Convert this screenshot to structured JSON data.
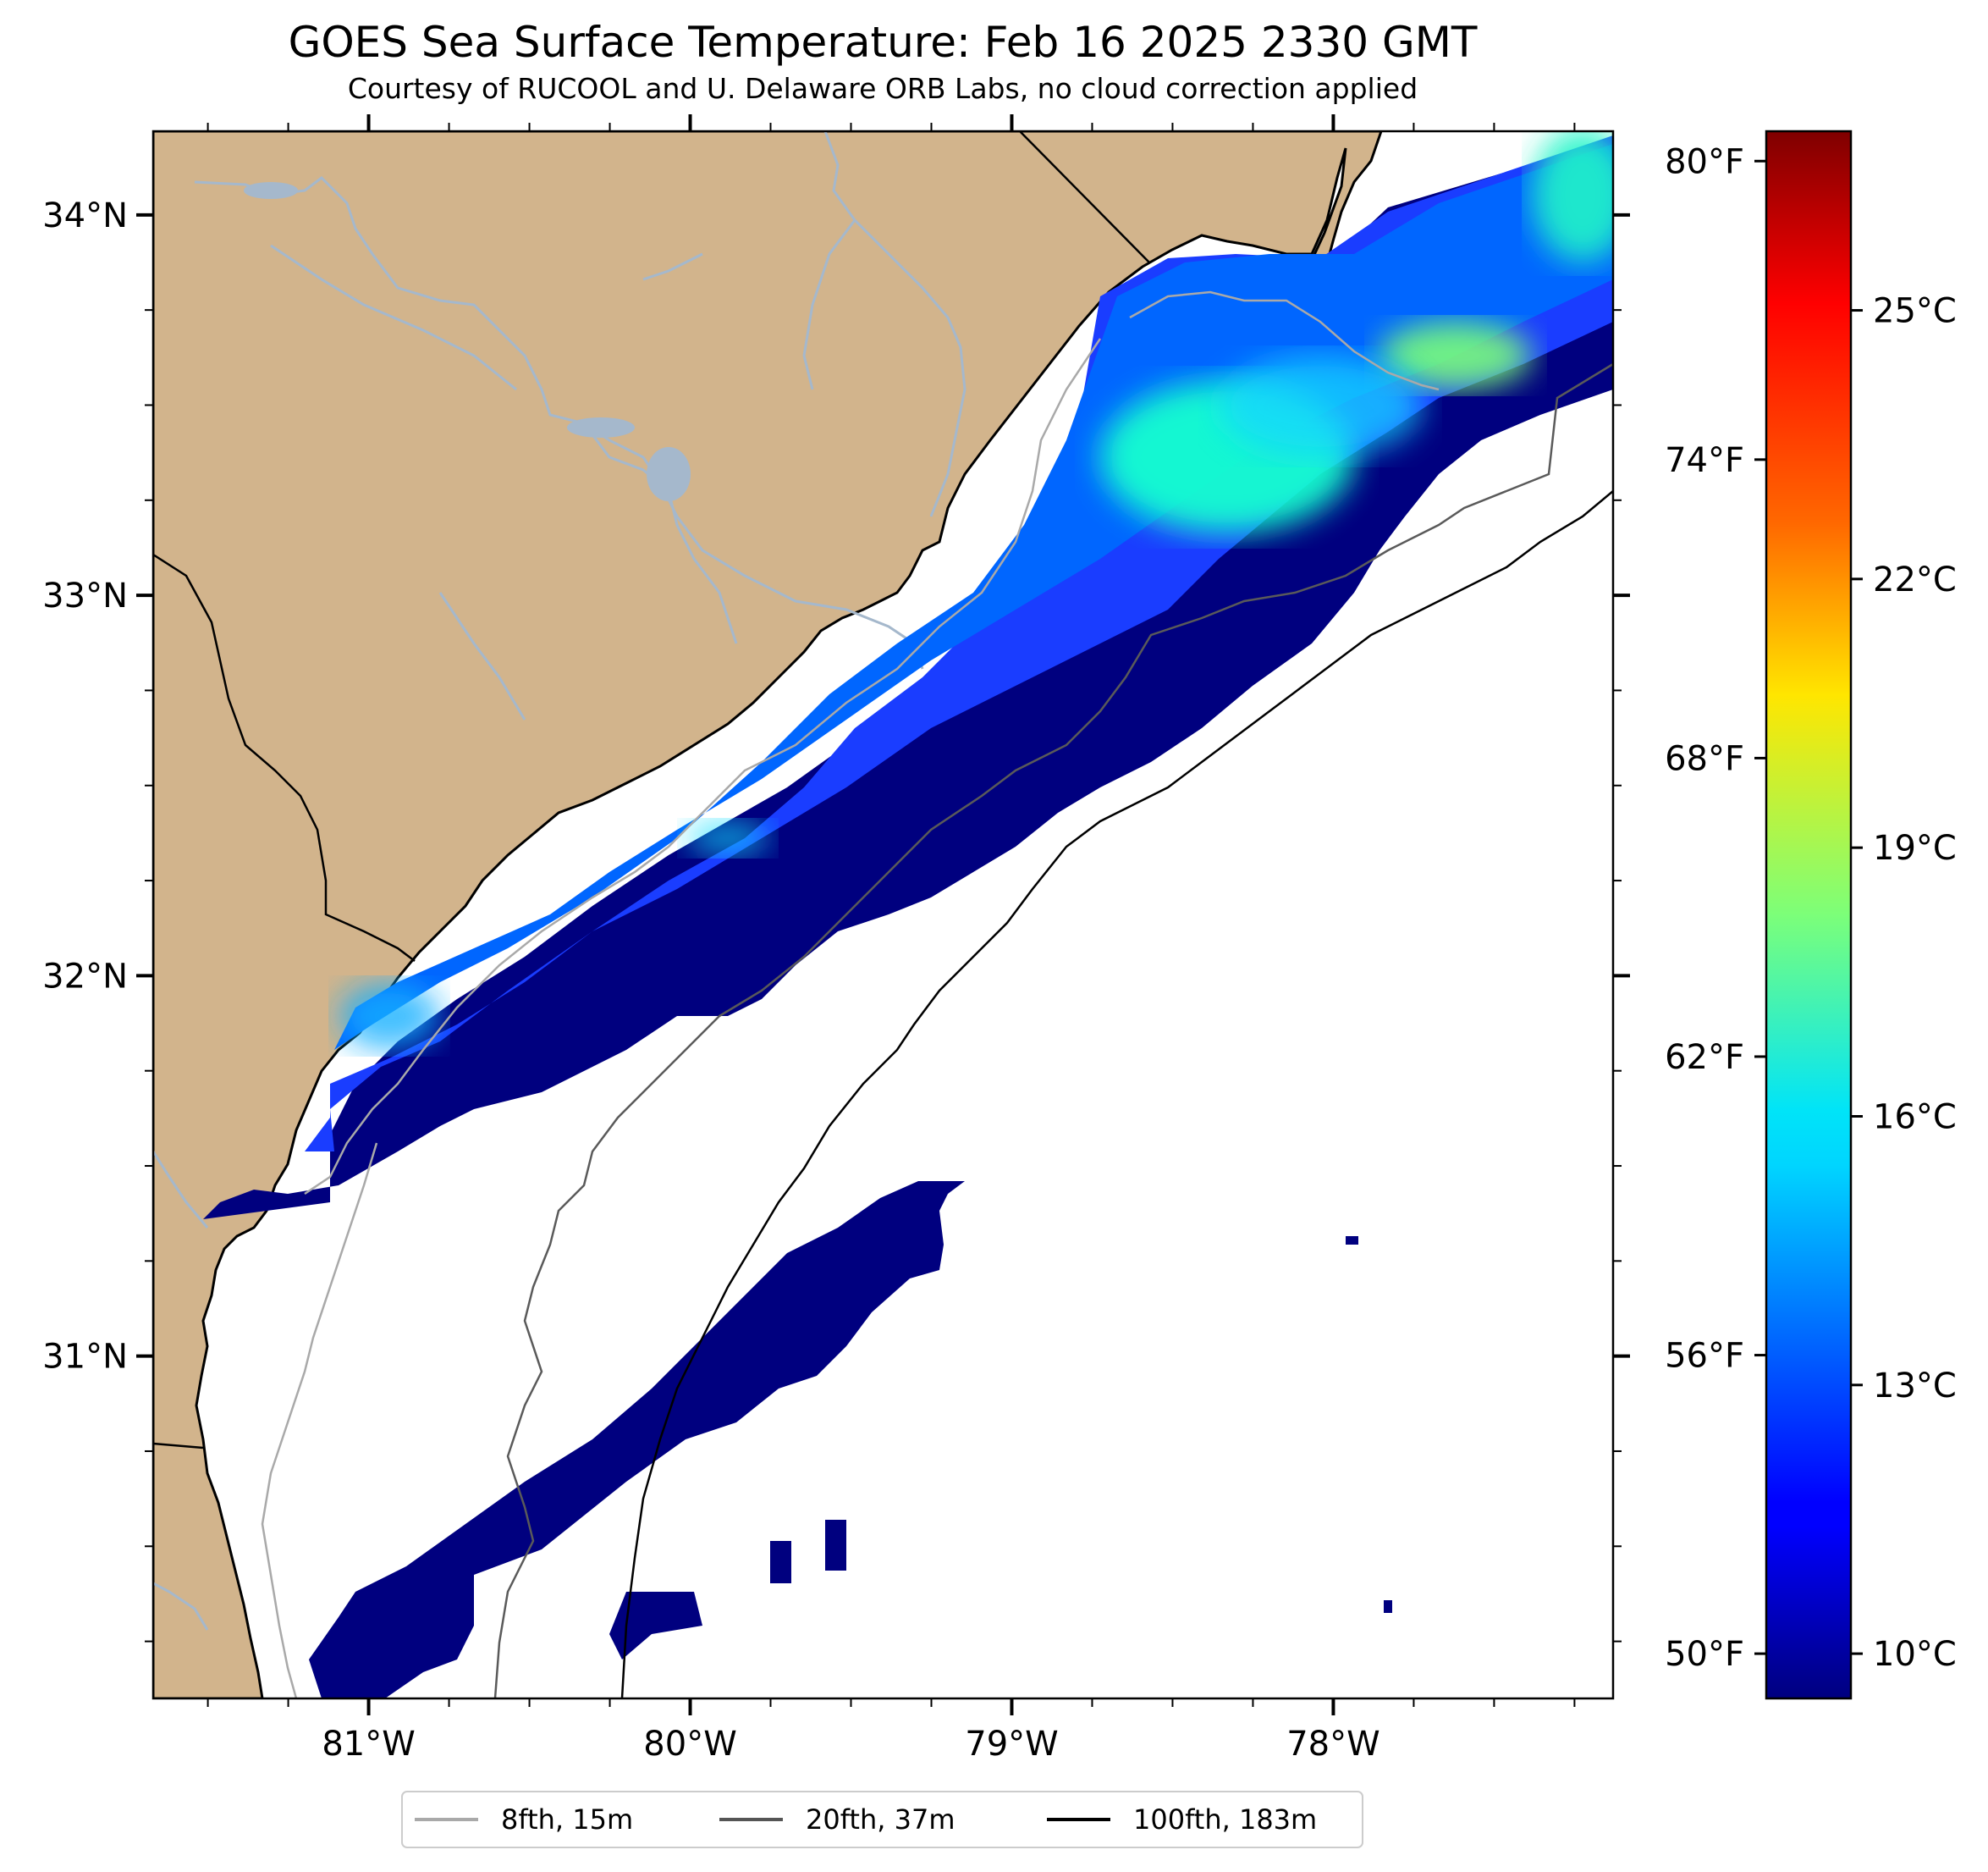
{
  "title": "GOES Sea Surface Temperature: Feb 16 2025 2330 GMT",
  "subtitle": "Courtesy of RUCOOL and U. Delaware ORB Labs, no cloud correction applied",
  "map": {
    "lon_ticks": [
      {
        "value": -81,
        "label": "81°W"
      },
      {
        "value": -80,
        "label": "80°W"
      },
      {
        "value": -79,
        "label": "79°W"
      },
      {
        "value": -78,
        "label": "78°W"
      }
    ],
    "lat_ticks": [
      {
        "value": 34,
        "label": "34°N"
      },
      {
        "value": 33,
        "label": "33°N"
      },
      {
        "value": 32,
        "label": "32°N"
      },
      {
        "value": 31,
        "label": "31°N"
      }
    ],
    "extent": {
      "lon": [
        -81.67,
        -77.13
      ],
      "lat": [
        30.1,
        34.22
      ]
    },
    "land_color": "#d2b48c",
    "river_color": "#a5b8cc"
  },
  "colorbar": {
    "colormap": "jet",
    "range_c": [
      9.5,
      27
    ],
    "fahrenheit_ticks": [
      {
        "value": 50,
        "label": "50°F"
      },
      {
        "value": 56,
        "label": "56°F"
      },
      {
        "value": 62,
        "label": "62°F"
      },
      {
        "value": 68,
        "label": "68°F"
      },
      {
        "value": 74,
        "label": "74°F"
      },
      {
        "value": 80,
        "label": "80°F"
      }
    ],
    "celsius_ticks": [
      {
        "value": 10,
        "label": "10°C"
      },
      {
        "value": 13,
        "label": "13°C"
      },
      {
        "value": 16,
        "label": "16°C"
      },
      {
        "value": 19,
        "label": "19°C"
      },
      {
        "value": 22,
        "label": "22°C"
      },
      {
        "value": 25,
        "label": "25°C"
      }
    ]
  },
  "legend": {
    "placement": "bottom-center",
    "items": [
      {
        "label": "8fth, 15m",
        "color": "#a9a9a9"
      },
      {
        "label": "20fth, 37m",
        "color": "#555555"
      },
      {
        "label": "100fth, 183m",
        "color": "#000000"
      }
    ]
  }
}
